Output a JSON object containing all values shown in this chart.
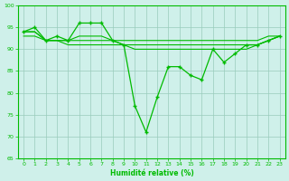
{
  "x": [
    0,
    1,
    2,
    3,
    4,
    5,
    6,
    7,
    8,
    9,
    10,
    11,
    12,
    13,
    14,
    15,
    16,
    17,
    18,
    19,
    20,
    21,
    22,
    23
  ],
  "line1": [
    94,
    95,
    92,
    93,
    92,
    96,
    96,
    96,
    92,
    91,
    77,
    71,
    79,
    86,
    86,
    84,
    83,
    90,
    87,
    89,
    91,
    91,
    92,
    93
  ],
  "line2": [
    94,
    94,
    92,
    92,
    92,
    93,
    93,
    93,
    92,
    92,
    92,
    92,
    92,
    92,
    92,
    92,
    92,
    92,
    92,
    92,
    92,
    92,
    93,
    93
  ],
  "line3": [
    94,
    94,
    92,
    92,
    92,
    92,
    92,
    92,
    92,
    91,
    91,
    91,
    91,
    91,
    91,
    91,
    91,
    91,
    91,
    91,
    91,
    91,
    92,
    93
  ],
  "line4": [
    93,
    93,
    92,
    92,
    91,
    91,
    91,
    91,
    91,
    91,
    90,
    90,
    90,
    90,
    90,
    90,
    90,
    90,
    90,
    90,
    90,
    91,
    92,
    93
  ],
  "line_color": "#00bb00",
  "bg_color": "#cff0ea",
  "grid_color": "#99ccbb",
  "xlabel": "Humidité relative (%)",
  "ylim": [
    65,
    100
  ],
  "xlim": [
    -0.5,
    23.5
  ],
  "yticks": [
    65,
    70,
    75,
    80,
    85,
    90,
    95,
    100
  ],
  "xticks": [
    0,
    1,
    2,
    3,
    4,
    5,
    6,
    7,
    8,
    9,
    10,
    11,
    12,
    13,
    14,
    15,
    16,
    17,
    18,
    19,
    20,
    21,
    22,
    23
  ]
}
